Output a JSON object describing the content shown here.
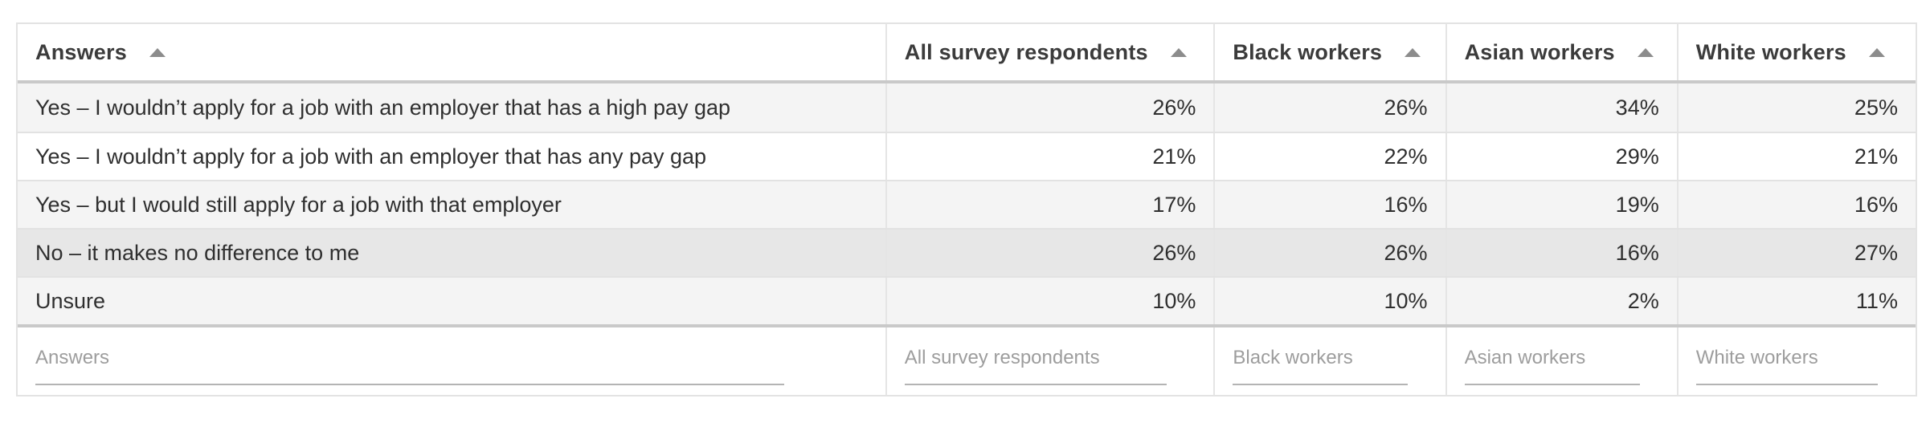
{
  "chart_data": {
    "type": "table",
    "columns": [
      "Answers",
      "All survey respondents",
      "Black workers",
      "Asian workers",
      "White workers"
    ],
    "rows": [
      [
        "Yes – I wouldn’t apply for a job with an employer that has a high pay gap",
        "26%",
        "26%",
        "34%",
        "25%"
      ],
      [
        "Yes – I wouldn’t apply for a job with an employer that has any pay gap",
        "21%",
        "22%",
        "29%",
        "21%"
      ],
      [
        "Yes – but I would still apply for a job with that employer",
        "17%",
        "16%",
        "19%",
        "16%"
      ],
      [
        "No – it makes no difference to me",
        "26%",
        "26%",
        "16%",
        "27%"
      ],
      [
        "Unsure",
        "10%",
        "10%",
        "2%",
        "11%"
      ]
    ],
    "layout_hints": {
      "sort_icons": "ascending-triangle on every column header",
      "value_alignment": "right",
      "striped_row_indexes": [
        0,
        2,
        4
      ],
      "highlighted_row_index": 3,
      "filter_row": true
    }
  },
  "ui": {
    "filter_placeholders": [
      "Answers",
      "All survey respondents",
      "Black workers",
      "Asian workers",
      "White workers"
    ],
    "filter_values": [
      "",
      "",
      "",
      "",
      ""
    ],
    "sort_icon": "ascending-triangle"
  },
  "colors": {
    "row_stripe": "#f4f4f4",
    "row_highlight": "#e7e7e7",
    "header_rule": "#c9c9c9",
    "grid_line": "#e2e2e2",
    "sort_arrow": "#8c8c8c",
    "header_text": "#3b3b3b",
    "body_text": "#2f2f2f",
    "placeholder_text": "#9d9d9d",
    "input_underline": "#b4b4b4"
  }
}
